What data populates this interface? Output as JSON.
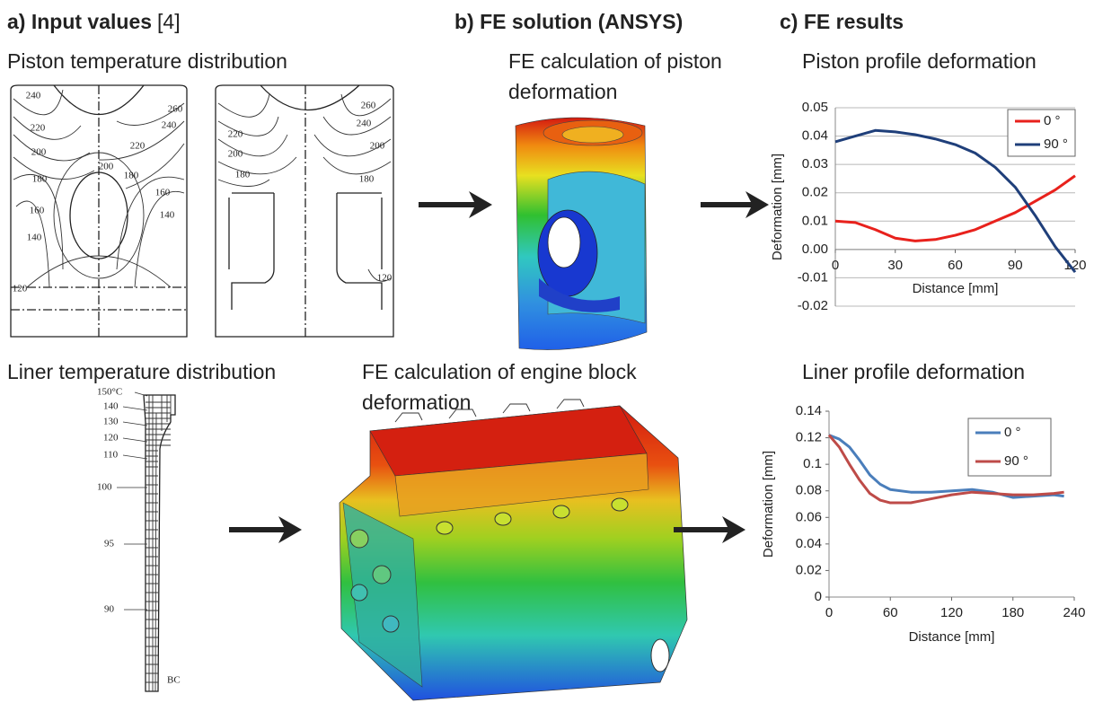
{
  "headers": [
    {
      "title": "a) Input values",
      "ref": "[4]"
    },
    {
      "title": "b) FE solution (ANSYS)"
    },
    {
      "title": "c) FE results"
    }
  ],
  "panels": {
    "piston_temperature": {
      "caption": "Piston temperature distribution",
      "left_labels": [
        "240",
        "220",
        "200",
        "180",
        "160",
        "140",
        "120",
        "260",
        "240",
        "220",
        "200",
        "180",
        "160",
        "140"
      ],
      "right_labels": [
        "260",
        "240",
        "220",
        "200",
        "180",
        "200",
        "180",
        "120"
      ]
    },
    "liner_temperature": {
      "caption": "Liner temperature distribution",
      "labels": [
        "150°C",
        "140",
        "130",
        "120",
        "110",
        "100",
        "95",
        "90",
        "BC"
      ]
    },
    "piston_fe": {
      "caption": [
        "FE calculation of piston",
        "deformation"
      ]
    },
    "block_fe": {
      "caption": [
        "FE calculation of engine block",
        "deformation"
      ]
    }
  },
  "chart_data": [
    {
      "type": "line",
      "title": "Piston profile deformation",
      "x_label": "Distance [mm]",
      "y_label": "Deformation [mm]",
      "x": [
        0,
        10,
        20,
        30,
        40,
        50,
        60,
        70,
        80,
        90,
        100,
        110,
        120
      ],
      "xlim": [
        0,
        120
      ],
      "xticks": [
        0,
        30,
        60,
        90,
        120
      ],
      "ylim": [
        -0.02,
        0.05
      ],
      "yticks": [
        -0.02,
        -0.01,
        {
          "value": 0,
          "label": "0.00"
        },
        0.01,
        0.02,
        0.03,
        0.04,
        0.05
      ],
      "grid": true,
      "legend": "upper right",
      "series": [
        {
          "name": "0 °",
          "color": "#e8211c",
          "values": [
            0.01,
            0.0095,
            0.007,
            0.004,
            0.003,
            0.0035,
            0.005,
            0.007,
            0.01,
            0.013,
            0.017,
            0.021,
            0.026
          ]
        },
        {
          "name": "90 °",
          "color": "#1f3f7a",
          "values": [
            0.038,
            0.04,
            0.042,
            0.0415,
            0.0405,
            0.039,
            0.037,
            0.034,
            0.029,
            0.022,
            0.012,
            0.001,
            -0.008
          ]
        }
      ]
    },
    {
      "type": "line",
      "title": "Liner profile deformation",
      "x_label": "Distance [mm]",
      "y_label": "Deformation [mm]",
      "x": [
        0,
        10,
        20,
        30,
        40,
        50,
        60,
        80,
        100,
        120,
        140,
        160,
        180,
        200,
        220,
        230
      ],
      "xlim": [
        0,
        240
      ],
      "xticks": [
        0,
        60,
        120,
        180,
        240
      ],
      "ylim": [
        0,
        0.14
      ],
      "yticks": [
        0,
        0.02,
        0.04,
        0.06,
        0.08,
        0.1,
        0.12,
        0.14
      ],
      "grid": false,
      "legend": "upper right",
      "series": [
        {
          "name": "0 °",
          "color": "#4a7ebb",
          "values": [
            0.122,
            0.119,
            0.113,
            0.103,
            0.092,
            0.085,
            0.081,
            0.079,
            0.079,
            0.08,
            0.081,
            0.079,
            0.075,
            0.076,
            0.077,
            0.076
          ]
        },
        {
          "name": "90 °",
          "color": "#be4b48",
          "values": [
            0.122,
            0.113,
            0.1,
            0.088,
            0.078,
            0.073,
            0.071,
            0.071,
            0.074,
            0.077,
            0.079,
            0.078,
            0.077,
            0.077,
            0.078,
            0.079
          ]
        }
      ]
    }
  ]
}
